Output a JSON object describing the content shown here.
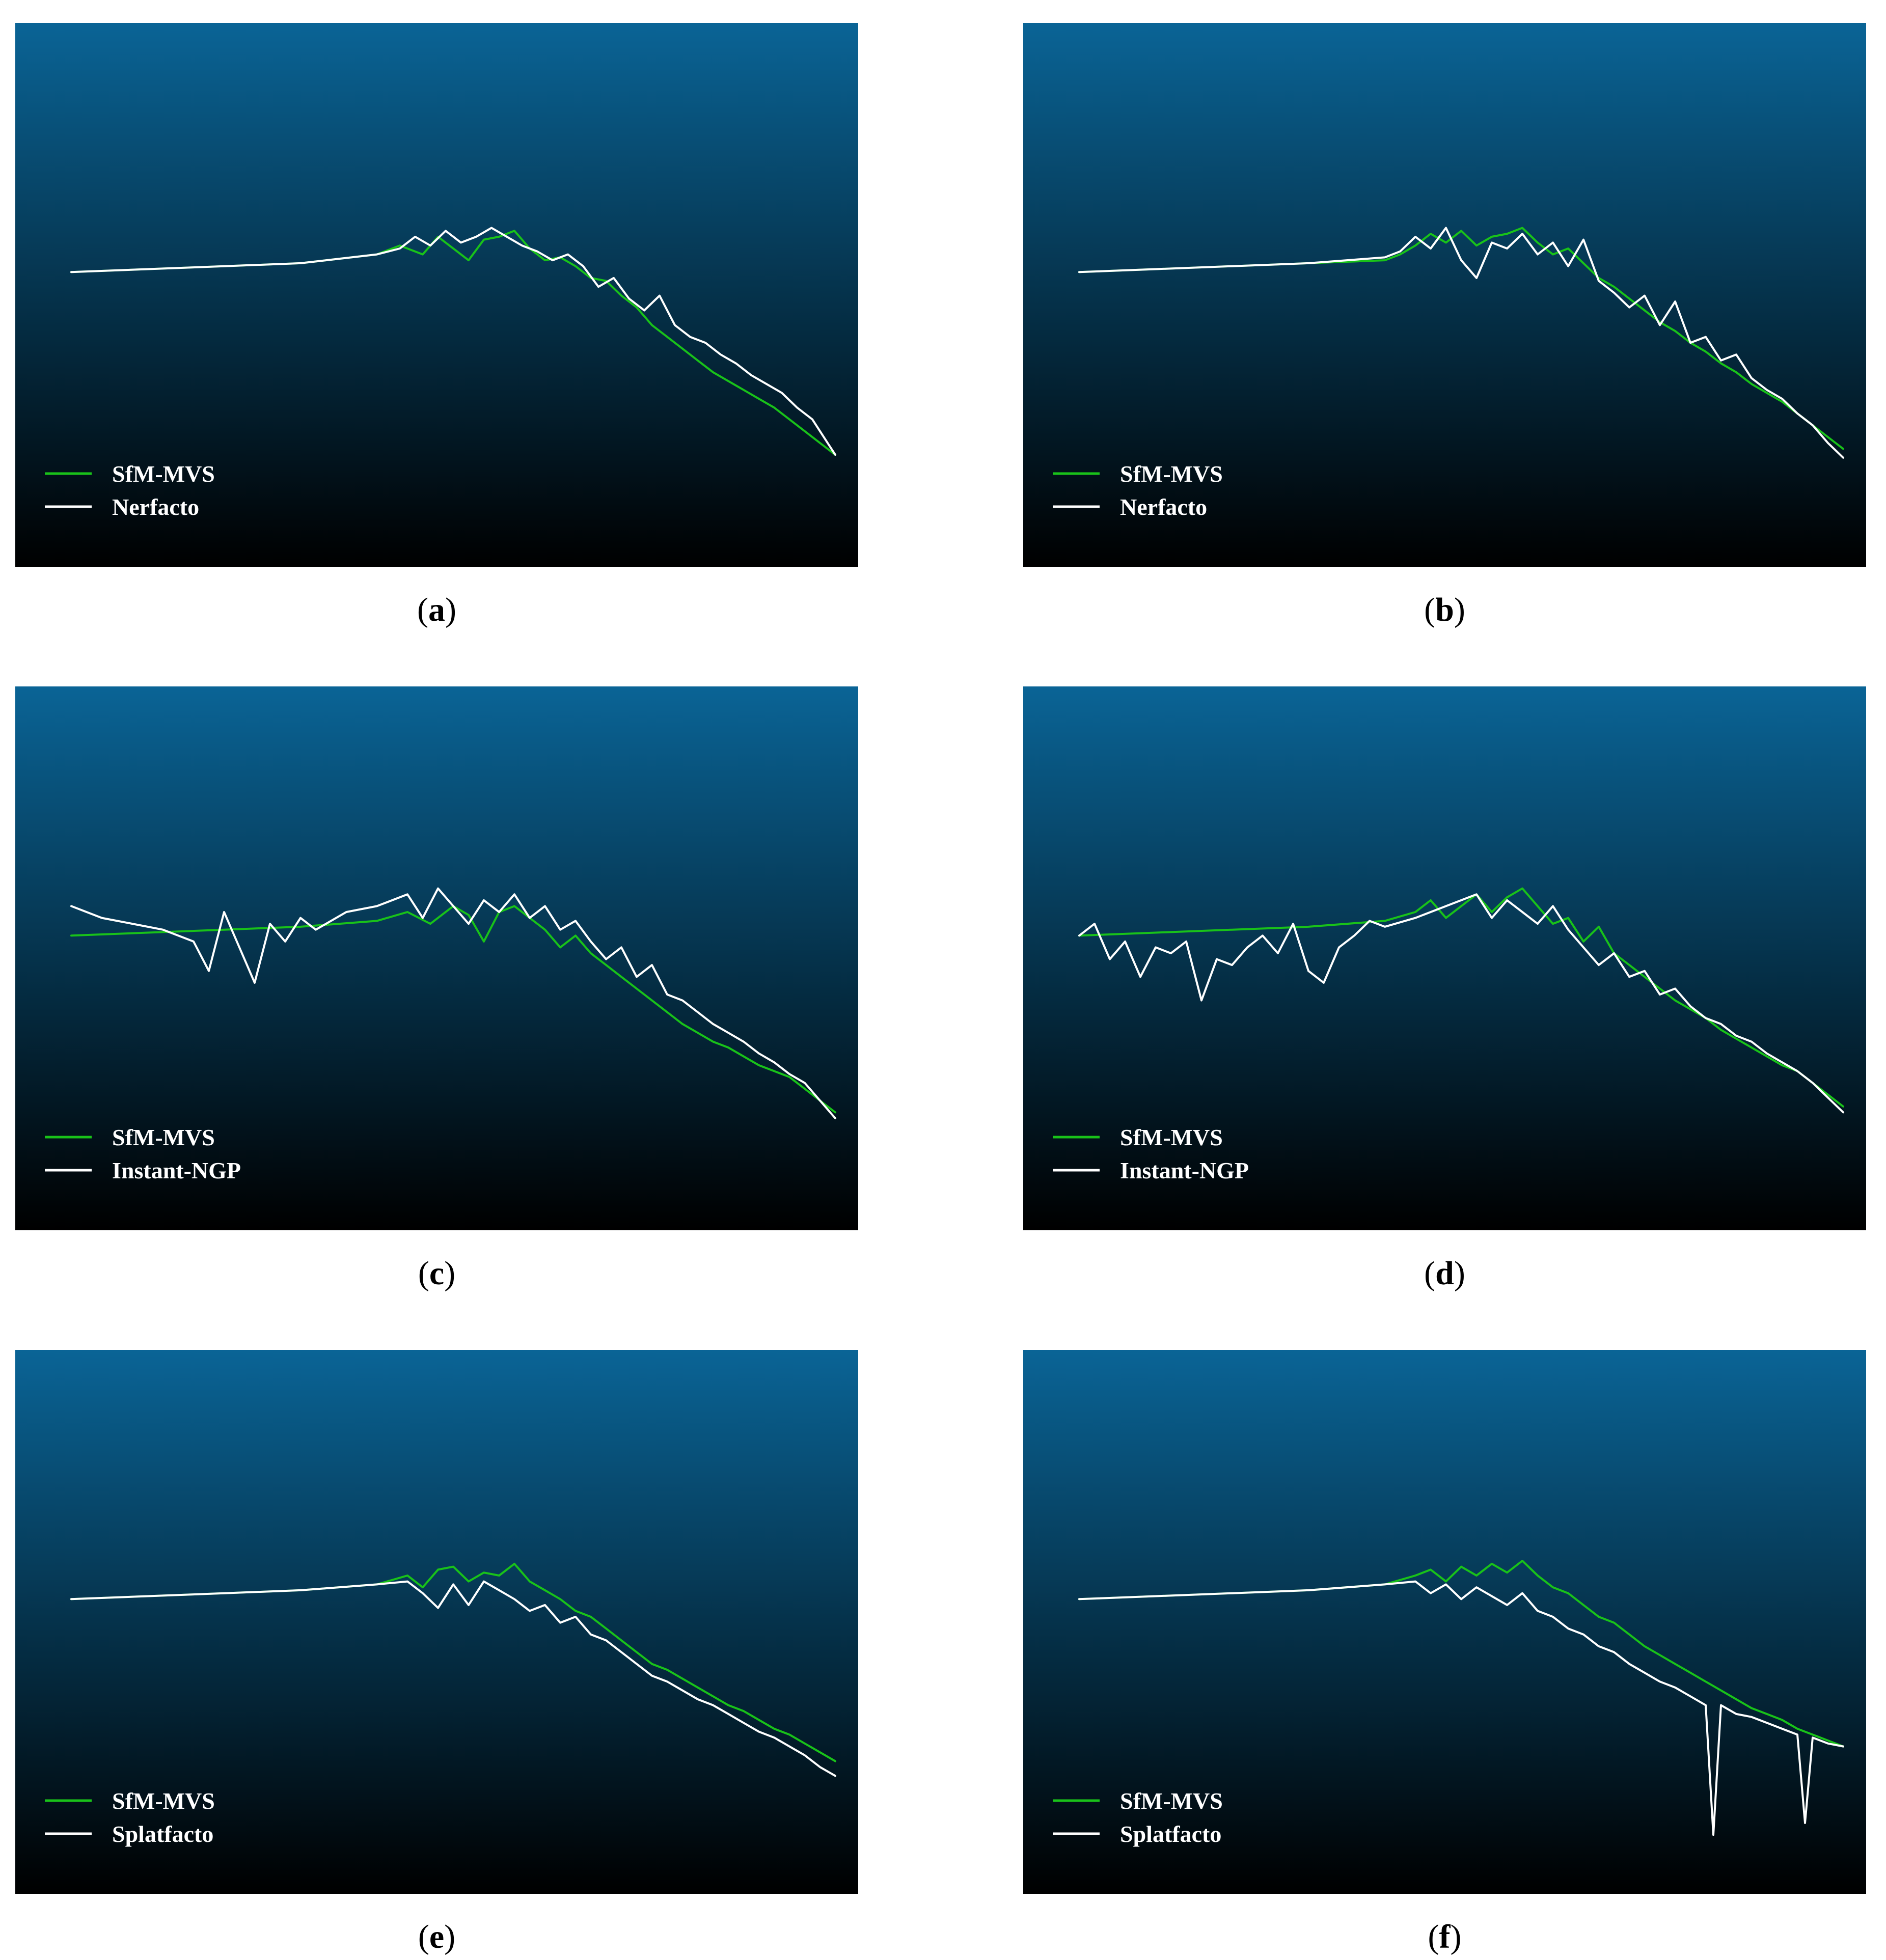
{
  "colors": {
    "background_top": "#0a6496",
    "background_bottom": "#000000",
    "reference_line": "#19c219",
    "comparison_line": "#ffffff"
  },
  "chart_data": [
    {
      "panel_label": "a",
      "type": "line",
      "background": "vertical gradient, blue to black",
      "legend_placement": "bottom-left",
      "series": [
        {
          "name": "SfM-MVS",
          "color": "#19c219",
          "x": [
            0.0,
            0.1,
            0.2,
            0.3,
            0.4,
            0.43,
            0.46,
            0.48,
            0.5,
            0.52,
            0.54,
            0.56,
            0.58,
            0.6,
            0.62,
            0.64,
            0.66,
            0.68,
            0.7,
            0.72,
            0.74,
            0.76,
            0.78,
            0.8,
            0.82,
            0.84,
            0.86,
            0.88,
            0.9,
            0.92,
            0.94,
            0.96,
            0.98,
            1.0
          ],
          "y": [
            0.0,
            0.01,
            0.02,
            0.03,
            0.06,
            0.09,
            0.06,
            0.12,
            0.08,
            0.04,
            0.11,
            0.12,
            0.14,
            0.08,
            0.04,
            0.05,
            0.02,
            -0.02,
            -0.03,
            -0.08,
            -0.12,
            -0.18,
            -0.22,
            -0.26,
            -0.3,
            -0.34,
            -0.37,
            -0.4,
            -0.43,
            -0.46,
            -0.5,
            -0.54,
            -0.58,
            -0.62
          ]
        },
        {
          "name": "Nerfacto",
          "color": "#ffffff",
          "x": [
            0.0,
            0.1,
            0.2,
            0.3,
            0.4,
            0.43,
            0.45,
            0.47,
            0.49,
            0.51,
            0.53,
            0.55,
            0.57,
            0.59,
            0.61,
            0.63,
            0.65,
            0.67,
            0.69,
            0.71,
            0.73,
            0.75,
            0.77,
            0.79,
            0.81,
            0.83,
            0.85,
            0.87,
            0.89,
            0.91,
            0.93,
            0.95,
            0.97,
            0.99,
            1.0
          ],
          "y": [
            0.0,
            0.01,
            0.02,
            0.03,
            0.06,
            0.08,
            0.12,
            0.09,
            0.14,
            0.1,
            0.12,
            0.15,
            0.12,
            0.09,
            0.07,
            0.04,
            0.06,
            0.02,
            -0.05,
            -0.02,
            -0.09,
            -0.13,
            -0.08,
            -0.18,
            -0.22,
            -0.24,
            -0.28,
            -0.31,
            -0.35,
            -0.38,
            -0.41,
            -0.46,
            -0.5,
            -0.58,
            -0.62
          ]
        }
      ]
    },
    {
      "panel_label": "b",
      "type": "line",
      "background": "vertical gradient, blue to black",
      "legend_placement": "bottom-left",
      "series": [
        {
          "name": "SfM-MVS",
          "color": "#19c219",
          "x": [
            0.0,
            0.1,
            0.2,
            0.3,
            0.4,
            0.42,
            0.44,
            0.46,
            0.48,
            0.5,
            0.52,
            0.54,
            0.56,
            0.58,
            0.6,
            0.62,
            0.64,
            0.66,
            0.68,
            0.7,
            0.72,
            0.74,
            0.76,
            0.78,
            0.8,
            0.82,
            0.84,
            0.86,
            0.88,
            0.9,
            0.92,
            0.94,
            0.96,
            0.98,
            1.0
          ],
          "y": [
            0.0,
            0.01,
            0.02,
            0.03,
            0.04,
            0.06,
            0.09,
            0.13,
            0.1,
            0.14,
            0.09,
            0.12,
            0.13,
            0.15,
            0.1,
            0.06,
            0.08,
            0.03,
            -0.02,
            -0.05,
            -0.09,
            -0.13,
            -0.17,
            -0.2,
            -0.24,
            -0.27,
            -0.31,
            -0.34,
            -0.38,
            -0.41,
            -0.44,
            -0.48,
            -0.52,
            -0.56,
            -0.6
          ]
        },
        {
          "name": "Nerfacto",
          "color": "#ffffff",
          "x": [
            0.0,
            0.1,
            0.2,
            0.3,
            0.4,
            0.42,
            0.44,
            0.46,
            0.48,
            0.5,
            0.52,
            0.54,
            0.56,
            0.58,
            0.6,
            0.62,
            0.64,
            0.66,
            0.68,
            0.7,
            0.72,
            0.74,
            0.76,
            0.78,
            0.8,
            0.82,
            0.84,
            0.86,
            0.88,
            0.9,
            0.92,
            0.94,
            0.96,
            0.98,
            1.0
          ],
          "y": [
            0.0,
            0.01,
            0.02,
            0.03,
            0.05,
            0.07,
            0.12,
            0.08,
            0.15,
            0.04,
            -0.02,
            0.1,
            0.08,
            0.13,
            0.06,
            0.1,
            0.02,
            0.11,
            -0.03,
            -0.07,
            -0.12,
            -0.08,
            -0.18,
            -0.1,
            -0.24,
            -0.22,
            -0.3,
            -0.28,
            -0.36,
            -0.4,
            -0.43,
            -0.48,
            -0.52,
            -0.58,
            -0.63
          ]
        }
      ]
    },
    {
      "panel_label": "c",
      "type": "line",
      "background": "vertical gradient, blue to black",
      "legend_placement": "bottom-left",
      "series": [
        {
          "name": "SfM-MVS",
          "color": "#19c219",
          "x": [
            0.0,
            0.1,
            0.2,
            0.3,
            0.4,
            0.44,
            0.47,
            0.5,
            0.52,
            0.54,
            0.56,
            0.58,
            0.6,
            0.62,
            0.64,
            0.66,
            0.68,
            0.7,
            0.72,
            0.74,
            0.76,
            0.78,
            0.8,
            0.82,
            0.84,
            0.86,
            0.88,
            0.9,
            0.92,
            0.94,
            0.96,
            0.98,
            1.0
          ],
          "y": [
            0.0,
            0.01,
            0.02,
            0.03,
            0.05,
            0.08,
            0.04,
            0.1,
            0.07,
            -0.02,
            0.08,
            0.1,
            0.06,
            0.02,
            -0.04,
            0.0,
            -0.06,
            -0.1,
            -0.14,
            -0.18,
            -0.22,
            -0.26,
            -0.3,
            -0.33,
            -0.36,
            -0.38,
            -0.41,
            -0.44,
            -0.46,
            -0.48,
            -0.52,
            -0.56,
            -0.6
          ]
        },
        {
          "name": "Instant-NGP",
          "color": "#ffffff",
          "x": [
            0.0,
            0.04,
            0.08,
            0.12,
            0.16,
            0.18,
            0.2,
            0.22,
            0.24,
            0.26,
            0.28,
            0.3,
            0.32,
            0.36,
            0.4,
            0.44,
            0.46,
            0.48,
            0.5,
            0.52,
            0.54,
            0.56,
            0.58,
            0.6,
            0.62,
            0.64,
            0.66,
            0.68,
            0.7,
            0.72,
            0.74,
            0.76,
            0.78,
            0.8,
            0.82,
            0.84,
            0.86,
            0.88,
            0.9,
            0.92,
            0.94,
            0.96,
            0.98,
            1.0
          ],
          "y": [
            0.1,
            0.06,
            0.04,
            0.02,
            -0.02,
            -0.12,
            0.08,
            -0.04,
            -0.16,
            0.04,
            -0.02,
            0.06,
            0.02,
            0.08,
            0.1,
            0.14,
            0.06,
            0.16,
            0.1,
            0.04,
            0.12,
            0.08,
            0.14,
            0.06,
            0.1,
            0.02,
            0.05,
            -0.02,
            -0.08,
            -0.04,
            -0.14,
            -0.1,
            -0.2,
            -0.22,
            -0.26,
            -0.3,
            -0.33,
            -0.36,
            -0.4,
            -0.43,
            -0.47,
            -0.5,
            -0.56,
            -0.62
          ]
        }
      ]
    },
    {
      "panel_label": "d",
      "type": "line",
      "background": "vertical gradient, blue to black",
      "legend_placement": "bottom-left",
      "series": [
        {
          "name": "SfM-MVS",
          "color": "#19c219",
          "x": [
            0.0,
            0.1,
            0.2,
            0.3,
            0.4,
            0.44,
            0.46,
            0.48,
            0.5,
            0.52,
            0.54,
            0.56,
            0.58,
            0.6,
            0.62,
            0.64,
            0.66,
            0.68,
            0.7,
            0.72,
            0.74,
            0.76,
            0.78,
            0.8,
            0.82,
            0.84,
            0.86,
            0.88,
            0.9,
            0.92,
            0.94,
            0.96,
            0.98,
            1.0
          ],
          "y": [
            0.0,
            0.01,
            0.02,
            0.03,
            0.05,
            0.08,
            0.12,
            0.06,
            0.1,
            0.14,
            0.08,
            0.13,
            0.16,
            0.1,
            0.04,
            0.06,
            -0.02,
            0.03,
            -0.06,
            -0.1,
            -0.14,
            -0.18,
            -0.22,
            -0.25,
            -0.28,
            -0.32,
            -0.35,
            -0.38,
            -0.41,
            -0.44,
            -0.46,
            -0.5,
            -0.54,
            -0.58
          ]
        },
        {
          "name": "Instant-NGP",
          "color": "#ffffff",
          "x": [
            0.0,
            0.02,
            0.04,
            0.06,
            0.08,
            0.1,
            0.12,
            0.14,
            0.16,
            0.18,
            0.2,
            0.22,
            0.24,
            0.26,
            0.28,
            0.3,
            0.32,
            0.34,
            0.36,
            0.38,
            0.4,
            0.44,
            0.48,
            0.52,
            0.54,
            0.56,
            0.58,
            0.6,
            0.62,
            0.64,
            0.66,
            0.68,
            0.7,
            0.72,
            0.74,
            0.76,
            0.78,
            0.8,
            0.82,
            0.84,
            0.86,
            0.88,
            0.9,
            0.92,
            0.94,
            0.96,
            0.98,
            1.0
          ],
          "y": [
            0.0,
            0.04,
            -0.08,
            -0.02,
            -0.14,
            -0.04,
            -0.06,
            -0.02,
            -0.22,
            -0.08,
            -0.1,
            -0.04,
            0.0,
            -0.06,
            0.04,
            -0.12,
            -0.16,
            -0.04,
            0.0,
            0.05,
            0.03,
            0.06,
            0.1,
            0.14,
            0.06,
            0.12,
            0.08,
            0.04,
            0.1,
            0.02,
            -0.04,
            -0.1,
            -0.06,
            -0.14,
            -0.12,
            -0.2,
            -0.18,
            -0.24,
            -0.28,
            -0.3,
            -0.34,
            -0.36,
            -0.4,
            -0.43,
            -0.46,
            -0.5,
            -0.55,
            -0.6
          ]
        }
      ]
    },
    {
      "panel_label": "e",
      "type": "line",
      "background": "vertical gradient, blue to black",
      "legend_placement": "bottom-left",
      "series": [
        {
          "name": "SfM-MVS",
          "color": "#19c219",
          "x": [
            0.0,
            0.1,
            0.2,
            0.3,
            0.4,
            0.44,
            0.46,
            0.48,
            0.5,
            0.52,
            0.54,
            0.56,
            0.58,
            0.6,
            0.62,
            0.64,
            0.66,
            0.68,
            0.7,
            0.72,
            0.74,
            0.76,
            0.78,
            0.8,
            0.82,
            0.84,
            0.86,
            0.88,
            0.9,
            0.92,
            0.94,
            0.96,
            0.98,
            1.0
          ],
          "y": [
            0.0,
            0.01,
            0.02,
            0.03,
            0.05,
            0.08,
            0.04,
            0.1,
            0.11,
            0.06,
            0.09,
            0.08,
            0.12,
            0.06,
            0.03,
            0.0,
            -0.04,
            -0.06,
            -0.1,
            -0.14,
            -0.18,
            -0.22,
            -0.24,
            -0.27,
            -0.3,
            -0.33,
            -0.36,
            -0.38,
            -0.41,
            -0.44,
            -0.46,
            -0.49,
            -0.52,
            -0.55
          ]
        },
        {
          "name": "Splatfacto",
          "color": "#ffffff",
          "x": [
            0.0,
            0.1,
            0.2,
            0.3,
            0.4,
            0.44,
            0.46,
            0.48,
            0.5,
            0.52,
            0.54,
            0.56,
            0.58,
            0.6,
            0.62,
            0.64,
            0.66,
            0.68,
            0.7,
            0.72,
            0.74,
            0.76,
            0.78,
            0.8,
            0.82,
            0.84,
            0.86,
            0.88,
            0.9,
            0.92,
            0.94,
            0.96,
            0.98,
            1.0
          ],
          "y": [
            0.0,
            0.01,
            0.02,
            0.03,
            0.05,
            0.06,
            0.02,
            -0.03,
            0.05,
            -0.02,
            0.06,
            0.03,
            0.0,
            -0.04,
            -0.02,
            -0.08,
            -0.06,
            -0.12,
            -0.14,
            -0.18,
            -0.22,
            -0.26,
            -0.28,
            -0.31,
            -0.34,
            -0.36,
            -0.39,
            -0.42,
            -0.45,
            -0.47,
            -0.5,
            -0.53,
            -0.57,
            -0.6
          ]
        }
      ]
    },
    {
      "panel_label": "f",
      "type": "line",
      "background": "vertical gradient, blue to black",
      "legend_placement": "bottom-left",
      "series": [
        {
          "name": "SfM-MVS",
          "color": "#19c219",
          "x": [
            0.0,
            0.1,
            0.2,
            0.3,
            0.4,
            0.44,
            0.46,
            0.48,
            0.5,
            0.52,
            0.54,
            0.56,
            0.58,
            0.6,
            0.62,
            0.64,
            0.66,
            0.68,
            0.7,
            0.72,
            0.74,
            0.76,
            0.78,
            0.8,
            0.82,
            0.84,
            0.86,
            0.88,
            0.9,
            0.92,
            0.94,
            0.96,
            0.98,
            1.0
          ],
          "y": [
            0.0,
            0.01,
            0.02,
            0.03,
            0.05,
            0.08,
            0.1,
            0.06,
            0.11,
            0.08,
            0.12,
            0.09,
            0.13,
            0.08,
            0.04,
            0.02,
            -0.02,
            -0.06,
            -0.08,
            -0.12,
            -0.16,
            -0.19,
            -0.22,
            -0.25,
            -0.28,
            -0.31,
            -0.34,
            -0.37,
            -0.39,
            -0.41,
            -0.44,
            -0.46,
            -0.48,
            -0.5
          ]
        },
        {
          "name": "Splatfacto",
          "color": "#ffffff",
          "x": [
            0.0,
            0.1,
            0.2,
            0.3,
            0.4,
            0.44,
            0.46,
            0.48,
            0.5,
            0.52,
            0.54,
            0.56,
            0.58,
            0.6,
            0.62,
            0.64,
            0.66,
            0.68,
            0.7,
            0.72,
            0.74,
            0.76,
            0.78,
            0.8,
            0.82,
            0.83,
            0.84,
            0.86,
            0.88,
            0.9,
            0.92,
            0.94,
            0.95,
            0.96,
            0.98,
            1.0
          ],
          "y": [
            0.0,
            0.01,
            0.02,
            0.03,
            0.05,
            0.06,
            0.02,
            0.05,
            0.0,
            0.04,
            0.01,
            -0.02,
            0.02,
            -0.04,
            -0.06,
            -0.1,
            -0.12,
            -0.16,
            -0.18,
            -0.22,
            -0.25,
            -0.28,
            -0.3,
            -0.33,
            -0.36,
            -0.8,
            -0.36,
            -0.39,
            -0.4,
            -0.42,
            -0.44,
            -0.46,
            -0.76,
            -0.47,
            -0.49,
            -0.5
          ]
        }
      ]
    }
  ],
  "captions": [
    {
      "open": "(",
      "letter": "a",
      "close": ")"
    },
    {
      "open": "(",
      "letter": "b",
      "close": ")"
    },
    {
      "open": "(",
      "letter": "c",
      "close": ")"
    },
    {
      "open": "(",
      "letter": "d",
      "close": ")"
    },
    {
      "open": "(",
      "letter": "e",
      "close": ")"
    },
    {
      "open": "(",
      "letter": "f",
      "close": ")"
    }
  ]
}
